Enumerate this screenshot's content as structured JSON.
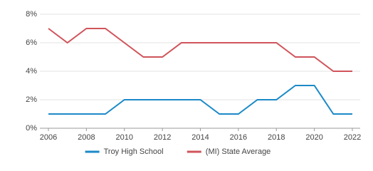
{
  "chart_data": {
    "type": "line",
    "x": [
      2006,
      2007,
      2008,
      2009,
      2010,
      2011,
      2012,
      2013,
      2014,
      2015,
      2016,
      2017,
      2018,
      2019,
      2020,
      2021,
      2022
    ],
    "series": [
      {
        "name": "Troy High School",
        "color": "#1b8ac7",
        "values": [
          1,
          1,
          1,
          1,
          2,
          2,
          2,
          2,
          2,
          1,
          1,
          2,
          2,
          3,
          3,
          1,
          1
        ]
      },
      {
        "name": "(MI) State Average",
        "color": "#d0545b",
        "values": [
          7,
          6,
          7,
          7,
          6,
          5,
          5,
          6,
          6,
          6,
          6,
          6,
          6,
          5,
          5,
          4,
          4
        ]
      }
    ],
    "xlim": [
      2006,
      2022
    ],
    "xticks": [
      2006,
      2008,
      2010,
      2012,
      2014,
      2016,
      2018,
      2020,
      2022
    ],
    "ylim": [
      0,
      8
    ],
    "yticks": [
      {
        "value": 0,
        "label": "0%"
      },
      {
        "value": 2,
        "label": "2%"
      },
      {
        "value": 4,
        "label": "4%"
      },
      {
        "value": 6,
        "label": "6%"
      },
      {
        "value": 8,
        "label": "8%"
      }
    ],
    "grid": true,
    "legend": "bottom"
  }
}
